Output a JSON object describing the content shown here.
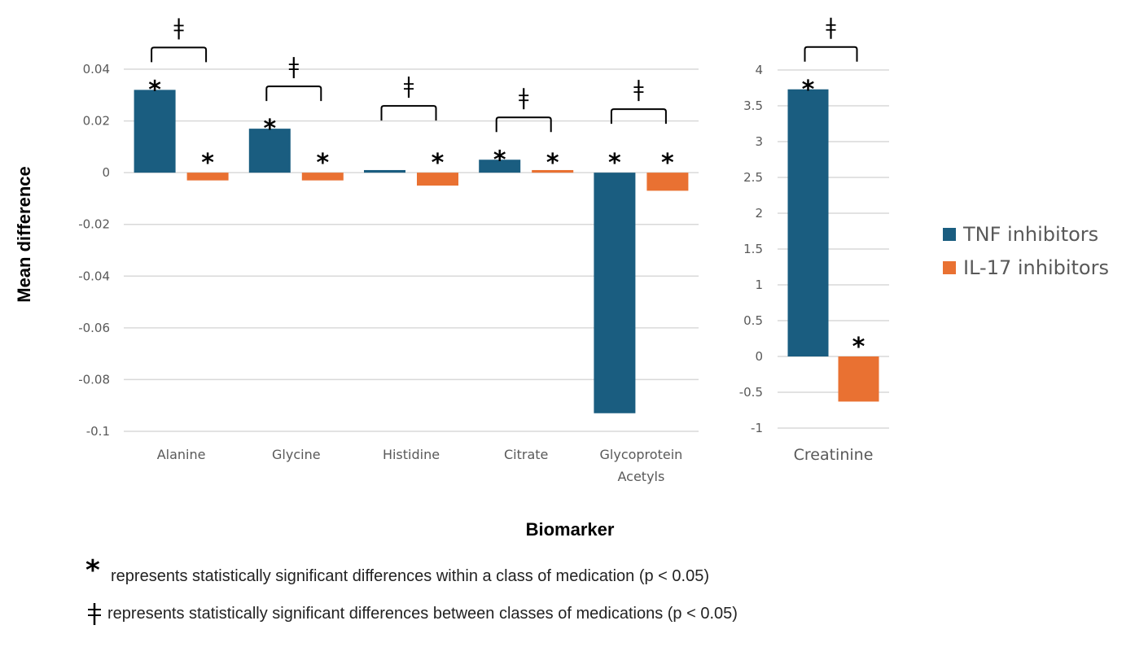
{
  "chart_data": [
    {
      "type": "bar",
      "panel": "left",
      "categories": [
        "Alanine",
        "Glycine",
        "Histidine",
        "Citrate",
        "Glycoprotein Acetyls"
      ],
      "category_lines": [
        [
          "Alanine"
        ],
        [
          "Glycine"
        ],
        [
          "Histidine"
        ],
        [
          "Citrate"
        ],
        [
          "Glycoprotein",
          "Acetyls"
        ]
      ],
      "series": [
        {
          "name": "TNF inhibitors",
          "color": "#1a5d80",
          "values": [
            0.032,
            0.017,
            0.001,
            0.005,
            -0.093
          ]
        },
        {
          "name": "IL-17 inhibitors",
          "color": "#e97132",
          "values": [
            -0.003,
            -0.003,
            -0.005,
            0.001,
            -0.007
          ]
        }
      ],
      "within_significance": [
        [
          true,
          true
        ],
        [
          true,
          true
        ],
        [
          false,
          true
        ],
        [
          true,
          true
        ],
        [
          true,
          true
        ]
      ],
      "between_significance": [
        true,
        true,
        true,
        true,
        true
      ],
      "ylim": [
        -0.1,
        0.04
      ],
      "yticks": [
        0.04,
        0.02,
        0,
        -0.02,
        -0.04,
        -0.06,
        -0.08,
        -0.1
      ],
      "ytick_labels": [
        "0.04",
        "0.02",
        "0",
        "-0.02",
        "-0.04",
        "-0.06",
        "-0.08",
        "-0.1"
      ],
      "grid": true
    },
    {
      "type": "bar",
      "panel": "right",
      "categories": [
        "Creatinine"
      ],
      "category_lines": [
        [
          "Creatinine"
        ]
      ],
      "series": [
        {
          "name": "TNF inhibitors",
          "color": "#1a5d80",
          "values": [
            3.73
          ]
        },
        {
          "name": "IL-17 inhibitors",
          "color": "#e97132",
          "values": [
            -0.63
          ]
        }
      ],
      "within_significance": [
        [
          true,
          true
        ]
      ],
      "between_significance": [
        true
      ],
      "ylim": [
        -1,
        4
      ],
      "yticks": [
        4,
        3.5,
        3,
        2.5,
        2,
        1.5,
        1,
        0.5,
        0,
        -0.5,
        -1
      ],
      "ytick_labels": [
        "4",
        "3.5",
        "3",
        "2.5",
        "2",
        "1.5",
        "1",
        "0.5",
        "0",
        "-0.5",
        "-1"
      ],
      "grid": true
    }
  ],
  "axes": {
    "ylabel": "Mean difference",
    "xlabel": "Biomarker"
  },
  "legend": {
    "placement": "right",
    "items": [
      {
        "label": "TNF inhibitors",
        "color": "#1a5d80"
      },
      {
        "label": "IL-17 inhibitors",
        "color": "#e97132"
      }
    ]
  },
  "symbols": {
    "within": "*",
    "between": "ǂ"
  },
  "notes": [
    {
      "symbol": "*",
      "text": "represents statistically significant differences within a class of medication (p < 0.05)"
    },
    {
      "symbol": "ǂ",
      "text": "represents statistically significant differences between classes of medications (p < 0.05)"
    }
  ]
}
